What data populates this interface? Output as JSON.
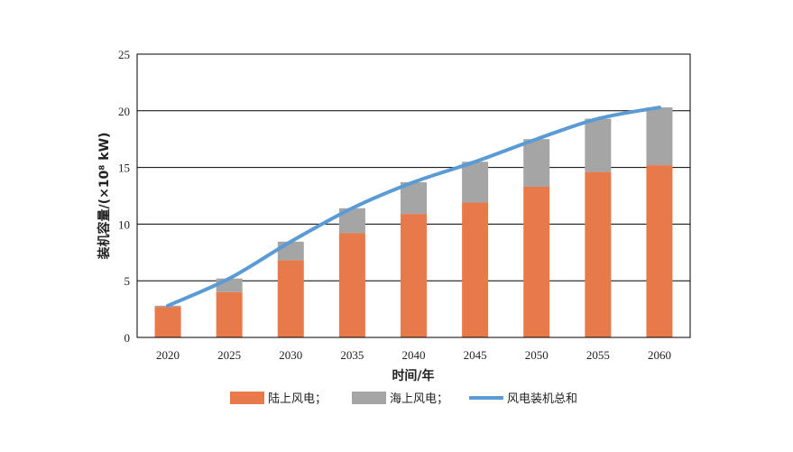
{
  "chart_data": {
    "type": "bar",
    "stacked": true,
    "categories": [
      "2020",
      "2025",
      "2030",
      "2035",
      "2040",
      "2045",
      "2050",
      "2055",
      "2060"
    ],
    "series": [
      {
        "name": "陆上风电；",
        "kind": "bar",
        "color": "#E8794A",
        "values": [
          2.7,
          4.0,
          6.8,
          9.2,
          10.9,
          11.9,
          13.3,
          14.6,
          15.2
        ]
      },
      {
        "name": "海上风电；",
        "kind": "bar",
        "color": "#A5A5A5",
        "values": [
          0.1,
          1.2,
          1.65,
          2.2,
          2.8,
          3.6,
          4.2,
          4.7,
          5.1
        ]
      },
      {
        "name": "风电装机总和",
        "kind": "line",
        "color": "#5B9BD5",
        "values": [
          2.8,
          5.2,
          8.45,
          11.4,
          13.7,
          15.5,
          17.5,
          19.3,
          20.3
        ]
      }
    ],
    "xlabel": "时间/年",
    "ylabel": "装机容量/(×10⁸ kW)",
    "ylim": [
      0,
      25
    ],
    "yticks": [
      0,
      5,
      10,
      15,
      20,
      25
    ],
    "grid": true,
    "legend_position": "bottom"
  }
}
